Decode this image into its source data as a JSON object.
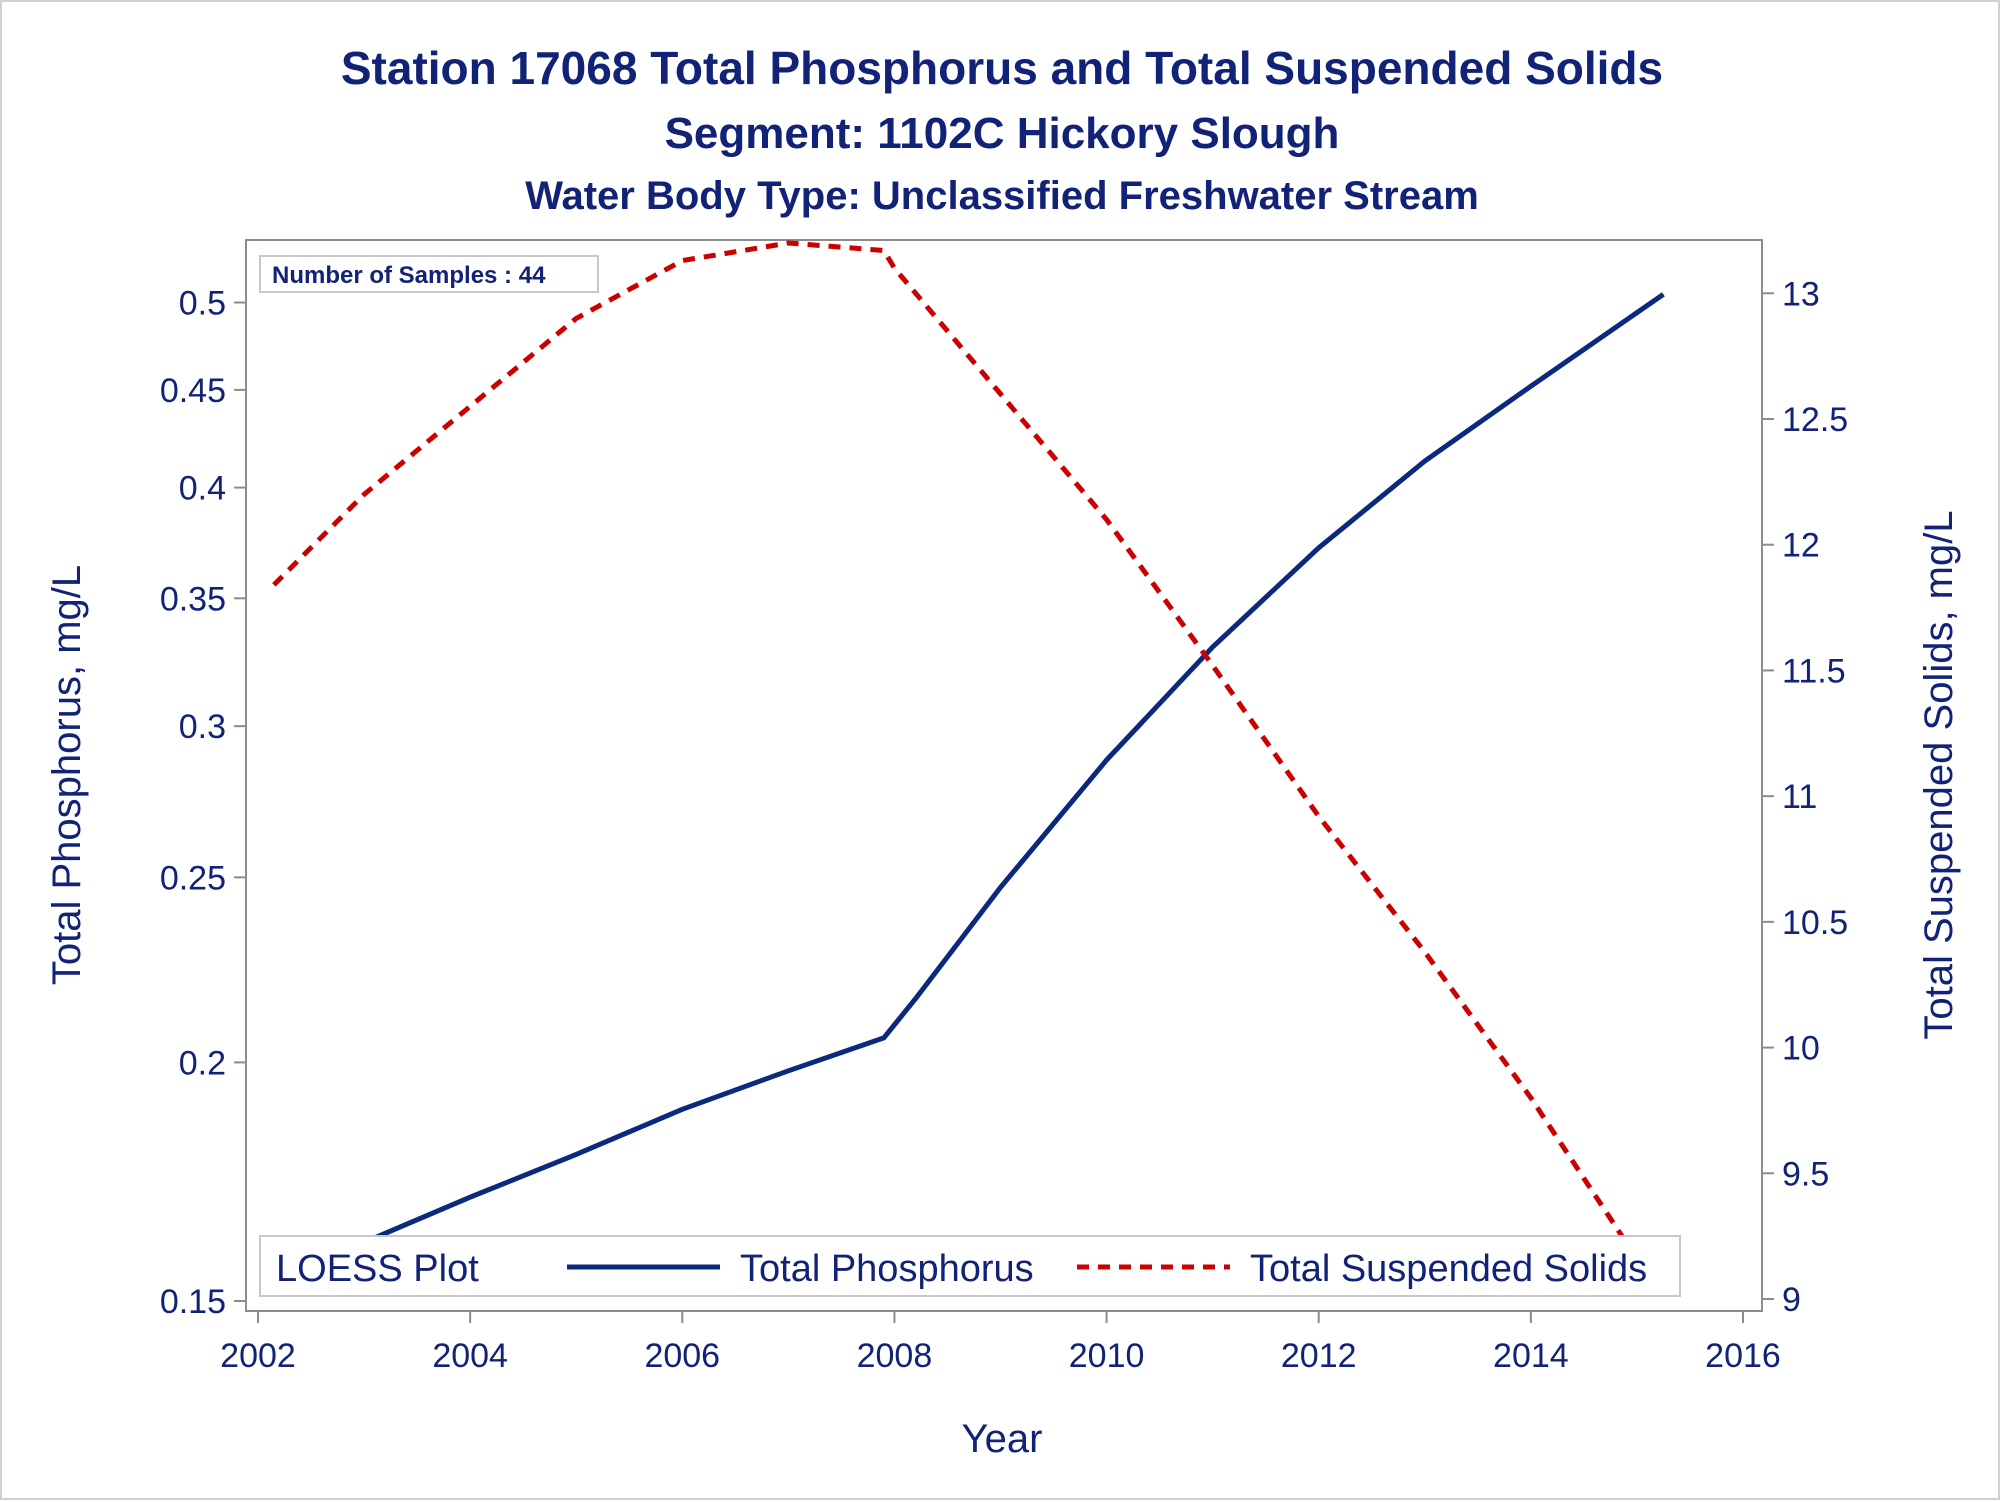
{
  "colors": {
    "text": "#112277",
    "phosphorus": "#0b2a7d",
    "solids": "#cc0000",
    "axis": "#8c8c8c",
    "legend_border": "#c8c8c8"
  },
  "chart_data": {
    "type": "line",
    "title": "Station 17068  Total Phosphorus and Total Suspended Solids",
    "subtitle": "Segment: 1102C  Hickory Slough",
    "subtitle2": "Water Body Type: Unclassified Freshwater Stream",
    "xlabel": "Year",
    "ylabel_left": "Total Phosphorus, mg/L",
    "ylabel_right": "Total Suspended Solids, mg/L",
    "xlim": [
      2002,
      2016
    ],
    "x_ticks": [
      2002,
      2004,
      2006,
      2008,
      2010,
      2012,
      2014,
      2016
    ],
    "y_left_scale": "log",
    "y_left_lim": [
      0.15,
      0.52
    ],
    "y_left_ticks": [
      0.15,
      0.2,
      0.25,
      0.3,
      0.35,
      0.4,
      0.45,
      0.5
    ],
    "y_right_lim": [
      9,
      13.2
    ],
    "y_right_ticks": [
      9,
      9.5,
      10,
      10.5,
      11,
      11.5,
      12,
      12.5,
      13
    ],
    "grid": false,
    "inset_note": "Number of Samples : 44",
    "legend": {
      "title": "LOESS Plot",
      "placement": "bottom-inside",
      "entries": [
        "Total Phosphorus",
        "Total Suspended Solids"
      ]
    },
    "series": [
      {
        "name": "Total Phosphorus",
        "axis": "left",
        "style": "solid",
        "x": [
          2002.15,
          2003,
          2004,
          2005,
          2006,
          2007,
          2007.9,
          2008.2,
          2009,
          2010,
          2011,
          2012,
          2013,
          2014,
          2015.25
        ],
        "y": [
          0.153,
          0.161,
          0.17,
          0.179,
          0.189,
          0.198,
          0.206,
          0.216,
          0.247,
          0.288,
          0.33,
          0.372,
          0.413,
          0.452,
          0.505
        ]
      },
      {
        "name": "Total Suspended Solids",
        "axis": "right",
        "style": "dashed",
        "x": [
          2002.15,
          2003,
          2004,
          2005,
          2006,
          2007,
          2007.9,
          2008,
          2009,
          2010,
          2011,
          2012,
          2013,
          2014,
          2015.25
        ],
        "y": [
          11.84,
          12.2,
          12.55,
          12.9,
          13.13,
          13.2,
          13.17,
          13.1,
          12.6,
          12.1,
          11.52,
          10.92,
          10.38,
          9.8,
          9.0
        ]
      }
    ]
  }
}
